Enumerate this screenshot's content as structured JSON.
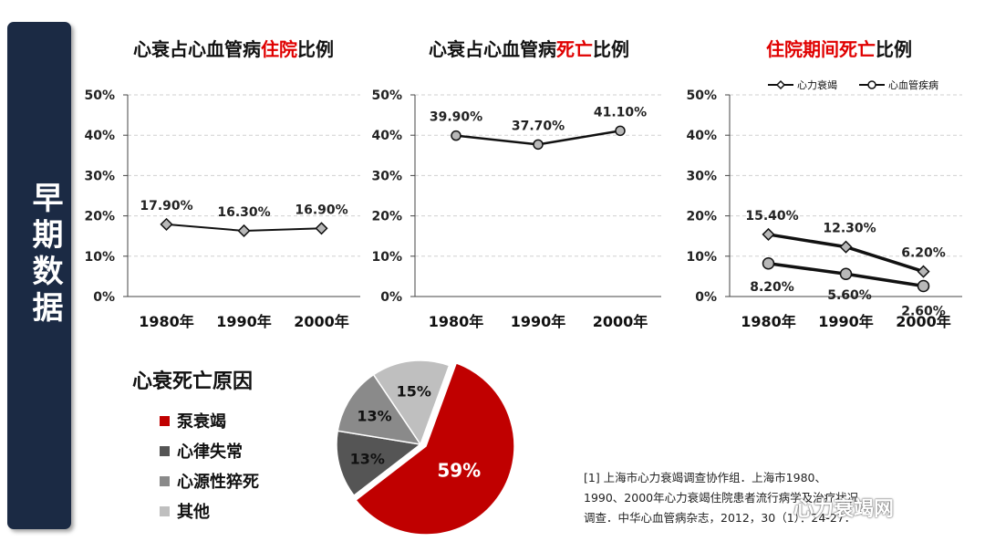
{
  "sidebar": {
    "title": "早期数据"
  },
  "charts": [
    {
      "id": "c1",
      "title_parts": [
        {
          "text": "心衰占心血管病",
          "hl": false
        },
        {
          "text": "住院",
          "hl": true
        },
        {
          "text": "比例",
          "hl": false
        }
      ]
    },
    {
      "id": "c2",
      "title_parts": [
        {
          "text": "心衰占心血管病",
          "hl": false
        },
        {
          "text": "死亡",
          "hl": true
        },
        {
          "text": "比例",
          "hl": false
        }
      ]
    },
    {
      "id": "c3",
      "title_parts": [
        {
          "text": "住院期间死亡",
          "hl": true
        },
        {
          "text": "比例",
          "hl": false
        }
      ]
    }
  ],
  "pie_section": {
    "title": "心衰死亡原因",
    "legend": [
      {
        "label": "泵衰竭",
        "color": "#c00000"
      },
      {
        "label": "心律失常",
        "color": "#555555"
      },
      {
        "label": "心源性猝死",
        "color": "#8a8a8a"
      },
      {
        "label": "其他",
        "color": "#bfbfbf"
      }
    ]
  },
  "reference": {
    "line1": "[1] 上海市心力衰竭调查协作组．上海市1980、",
    "line2": "1990、2000年心力衰竭住院患者流行病学及治疗状况",
    "line3": "调查．中华心血管病杂志，2012，30（1）：24-27．"
  },
  "watermark": "心力衰竭网",
  "chart_data": [
    {
      "type": "line",
      "categories": [
        "1980年",
        "1990年",
        "2000年"
      ],
      "y_ticks": [
        "0%",
        "10%",
        "20%",
        "30%",
        "40%",
        "50%"
      ],
      "ylim": [
        0,
        50
      ],
      "series": [
        {
          "values": [
            17.9,
            16.3,
            16.9
          ],
          "labels": [
            "17.90%",
            "16.30%",
            "16.90%"
          ],
          "marker": "diamond"
        }
      ],
      "grid": true
    },
    {
      "type": "line",
      "categories": [
        "1980年",
        "1990年",
        "2000年"
      ],
      "y_ticks": [
        "0%",
        "10%",
        "20%",
        "30%",
        "40%",
        "50%"
      ],
      "ylim": [
        0,
        50
      ],
      "series": [
        {
          "values": [
            39.9,
            37.7,
            41.1
          ],
          "labels": [
            "39.90%",
            "37.70%",
            "41.10%"
          ],
          "marker": "circle"
        }
      ],
      "grid": true
    },
    {
      "type": "line",
      "categories": [
        "1980年",
        "1990年",
        "2000年"
      ],
      "y_ticks": [
        "0%",
        "10%",
        "20%",
        "30%",
        "40%",
        "50%"
      ],
      "ylim": [
        0,
        50
      ],
      "legend_position": "top-right",
      "series": [
        {
          "name": "心力衰竭",
          "values": [
            15.4,
            12.3,
            6.2
          ],
          "labels": [
            "15.40%",
            "12.30%",
            "6.20%"
          ],
          "marker": "diamond"
        },
        {
          "name": "心血管疾病",
          "values": [
            8.2,
            5.6,
            2.6
          ],
          "labels": [
            "8.20%",
            "5.60%",
            "2.60%"
          ],
          "marker": "circle"
        }
      ],
      "grid": true
    },
    {
      "type": "pie",
      "slices": [
        {
          "label": "泵衰竭",
          "value": 59,
          "text": "59%",
          "color": "#c00000"
        },
        {
          "label": "心律失常",
          "value": 13,
          "text": "13%",
          "color": "#555555"
        },
        {
          "label": "心源性猝死",
          "value": 13,
          "text": "13%",
          "color": "#8a8a8a"
        },
        {
          "label": "其他",
          "value": 15,
          "text": "15%",
          "color": "#bfbfbf"
        }
      ]
    }
  ]
}
